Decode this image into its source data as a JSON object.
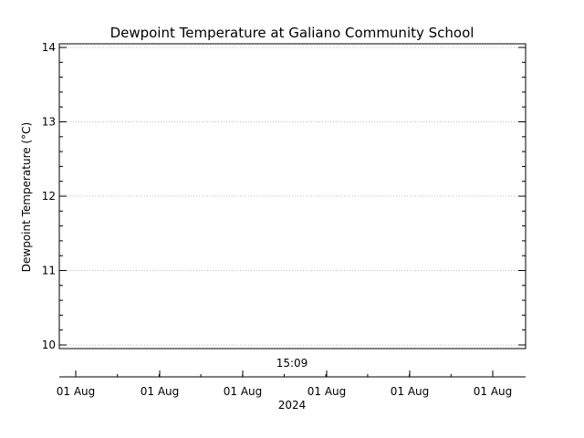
{
  "chart_data": {
    "type": "line",
    "title": "Dewpoint Temperature at Galiano Community School",
    "ylabel": "Dewpoint Temperature (°C)",
    "xlabel": "",
    "ylim": [
      10,
      14
    ],
    "y_ticks": [
      "10",
      "11",
      "12",
      "13",
      "14"
    ],
    "y_grid": true,
    "annotation": "15:09",
    "x_tick_labels": [
      "01 Aug",
      "01 Aug",
      "01 Aug",
      "01 Aug",
      "01 Aug",
      "01 Aug"
    ],
    "x_year_label": "2024",
    "series": []
  }
}
